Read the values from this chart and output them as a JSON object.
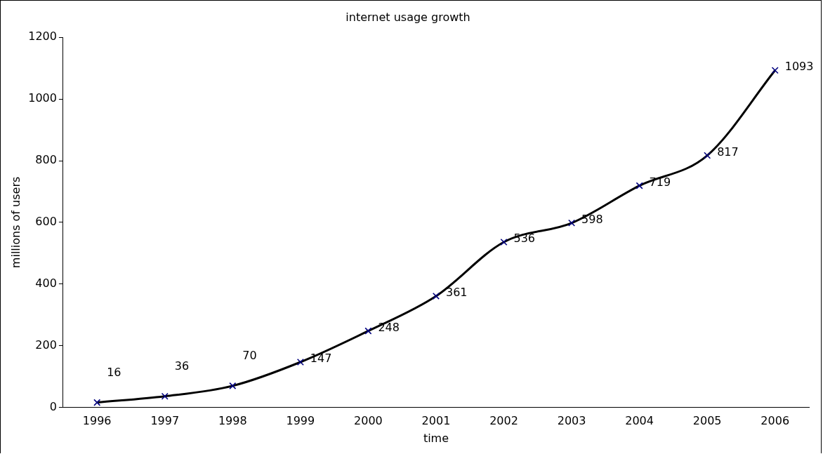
{
  "chart_data": {
    "type": "line",
    "title": "internet usage growth",
    "xlabel": "time",
    "ylabel": "millions of users",
    "categories": [
      "1996",
      "1997",
      "1998",
      "1999",
      "2000",
      "2001",
      "2002",
      "2003",
      "2004",
      "2005",
      "2006"
    ],
    "series": [
      {
        "color": "#000000",
        "values": [
          16,
          36,
          70,
          147,
          248,
          361,
          536,
          598,
          719,
          817,
          1093
        ]
      }
    ],
    "ylim": [
      0,
      1200
    ],
    "yticks": [
      0,
      200,
      400,
      600,
      800,
      1000,
      1200
    ],
    "grid": false,
    "legend": false,
    "marker": "cross",
    "line_style": "solid",
    "data_labels": true
  }
}
